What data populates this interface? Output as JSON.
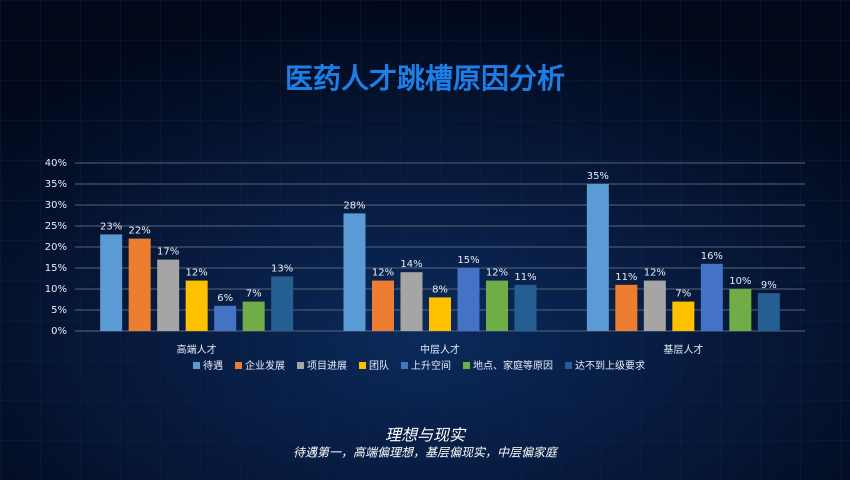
{
  "chart_data": {
    "type": "bar",
    "title": "医药人才跳槽原因分析",
    "categories": [
      "高端人才",
      "中层人才",
      "基层人才"
    ],
    "series": [
      {
        "name": "待遇",
        "color": "#5b9bd5",
        "values": [
          23,
          28,
          35
        ],
        "value_labels": [
          "23%",
          "28%",
          "35%"
        ]
      },
      {
        "name": "企业发展",
        "color": "#ed7d31",
        "values": [
          22,
          12,
          11
        ],
        "value_labels": [
          "22%",
          "12%",
          "11%"
        ]
      },
      {
        "name": "项目进展",
        "color": "#a5a5a5",
        "values": [
          17,
          14,
          12
        ],
        "value_labels": [
          "17%",
          "14%",
          "12%"
        ]
      },
      {
        "name": "团队",
        "color": "#ffc000",
        "values": [
          12,
          8,
          7
        ],
        "value_labels": [
          "12%",
          "8%",
          "7%"
        ]
      },
      {
        "name": "上升空间",
        "color": "#4472c4",
        "values": [
          6,
          15,
          16
        ],
        "value_labels": [
          "6%",
          "15%",
          "16%"
        ]
      },
      {
        "name": "地点、家庭等原因",
        "color": "#70ad47",
        "values": [
          7,
          12,
          10
        ],
        "value_labels": [
          "7%",
          "12%",
          "10%"
        ]
      },
      {
        "name": "达不到上级要求",
        "color": "#255e91",
        "values": [
          13,
          11,
          9
        ],
        "value_labels": [
          "13%",
          "11%",
          "9%"
        ]
      }
    ],
    "ylim": [
      0,
      40
    ],
    "yticks": [
      {
        "value": 0,
        "label": "0%"
      },
      {
        "value": 5,
        "label": "5%"
      },
      {
        "value": 10,
        "label": "10%"
      },
      {
        "value": 15,
        "label": "15%"
      },
      {
        "value": 20,
        "label": "20%"
      },
      {
        "value": 25,
        "label": "25%"
      },
      {
        "value": 30,
        "label": "30%"
      },
      {
        "value": 35,
        "label": "35%"
      },
      {
        "value": 40,
        "label": "40%"
      }
    ],
    "grid": true,
    "annotations": [
      "理想与现实",
      "待遇第一，高端偏理想，基层偏现实，中层偏家庭"
    ]
  }
}
